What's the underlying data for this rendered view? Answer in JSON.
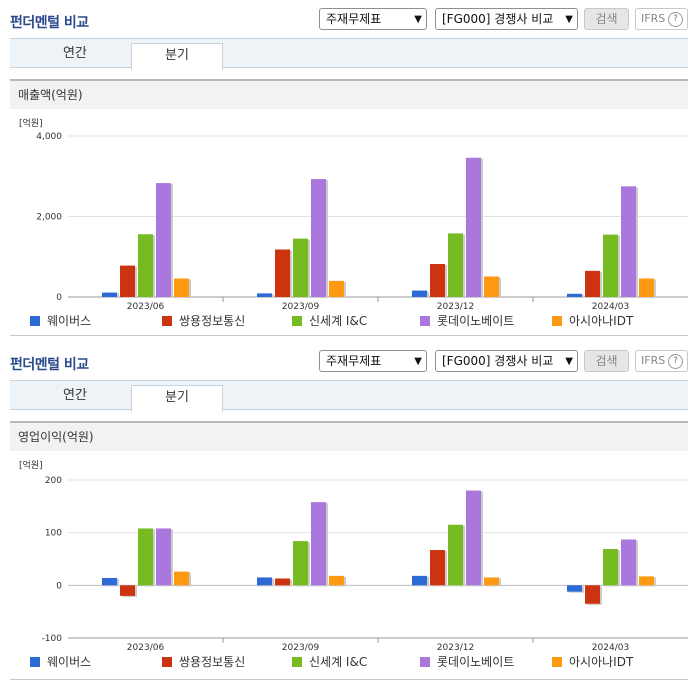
{
  "panels": [
    {
      "header": {
        "title": "펀더멘털 비교",
        "select1": "주재무제표",
        "select2": "[FG000] 경쟁사 비교",
        "search_label": "검색",
        "ifrs_label": "IFRS",
        "help": "?"
      },
      "tabs": [
        "연간",
        "분기"
      ],
      "active_tab": "분기",
      "metric_title": "매출액(억원)"
    },
    {
      "header": {
        "title": "펀더멘털 비교",
        "select1": "주재무제표",
        "select2": "[FG000] 경쟁사 비교",
        "search_label": "검색",
        "ifrs_label": "IFRS",
        "help": "?"
      },
      "tabs": [
        "연간",
        "분기"
      ],
      "active_tab": "분기",
      "metric_title": "영업이익(억원)"
    }
  ],
  "colors": {
    "accent": "#2a4a8c",
    "series": [
      "#2d6ad6",
      "#cc3311",
      "#77bb22",
      "#aa77dd",
      "#ff9911"
    ]
  },
  "chart_data": [
    {
      "type": "bar",
      "unit_label": "[억원]",
      "categories": [
        "2023/06",
        "2023/09",
        "2023/12",
        "2024/03"
      ],
      "ylim": [
        0,
        4000
      ],
      "yticks": [
        0,
        2000,
        4000
      ],
      "ytick_labels": [
        "0",
        "2,000",
        "4,000"
      ],
      "grid": true,
      "legend_position": "bottom",
      "series": [
        {
          "name": "웨이버스",
          "values": [
            110,
            90,
            160,
            80
          ]
        },
        {
          "name": "쌍용정보통신",
          "values": [
            780,
            1180,
            820,
            650
          ]
        },
        {
          "name": "신세계 I&C",
          "values": [
            1560,
            1450,
            1580,
            1550
          ]
        },
        {
          "name": "롯데이노베이트",
          "values": [
            2830,
            2930,
            3460,
            2750
          ]
        },
        {
          "name": "아시아나IDT",
          "values": [
            460,
            400,
            510,
            460
          ]
        }
      ]
    },
    {
      "type": "bar",
      "unit_label": "[억원]",
      "categories": [
        "2023/06",
        "2023/09",
        "2023/12",
        "2024/03"
      ],
      "ylim": [
        -100,
        200
      ],
      "yticks": [
        -100,
        0,
        100,
        200
      ],
      "ytick_labels": [
        "-100",
        "0",
        "100",
        "200"
      ],
      "grid": true,
      "legend_position": "bottom",
      "series": [
        {
          "name": "웨이버스",
          "values": [
            14,
            15,
            18,
            -12
          ]
        },
        {
          "name": "쌍용정보통신",
          "values": [
            -20,
            13,
            67,
            -35
          ]
        },
        {
          "name": "신세계 I&C",
          "values": [
            108,
            84,
            115,
            69
          ]
        },
        {
          "name": "롯데이노베이트",
          "values": [
            108,
            158,
            180,
            87
          ]
        },
        {
          "name": "아시아나IDT",
          "values": [
            26,
            18,
            15,
            17
          ]
        }
      ]
    }
  ]
}
